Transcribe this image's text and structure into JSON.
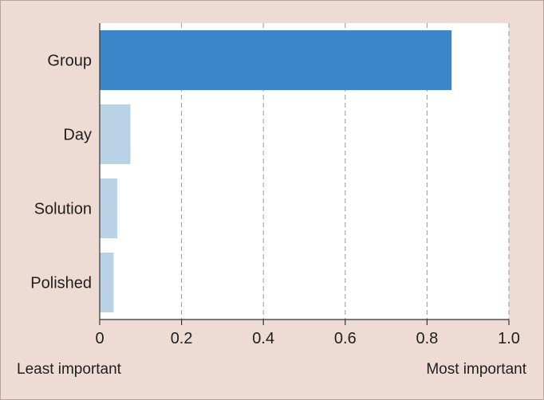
{
  "chart_data": {
    "type": "bar",
    "orientation": "horizontal",
    "categories": [
      "Group",
      "Day",
      "Solution",
      "Polished"
    ],
    "values": [
      0.86,
      0.075,
      0.043,
      0.034
    ],
    "xlim": [
      0,
      1.0
    ],
    "xticks": [
      "0",
      "0.2",
      "0.4",
      "0.6",
      "0.8",
      "1.0"
    ],
    "grid": "vertical dashed",
    "bottom_labels": {
      "left": "Least important",
      "right": "Most important"
    },
    "colors": {
      "highlight": "#3b86c8",
      "muted": "#bad2e6",
      "plot_background": "#ffffff",
      "page_background": "#eedbd3",
      "grid": "#9a9a9a"
    }
  }
}
